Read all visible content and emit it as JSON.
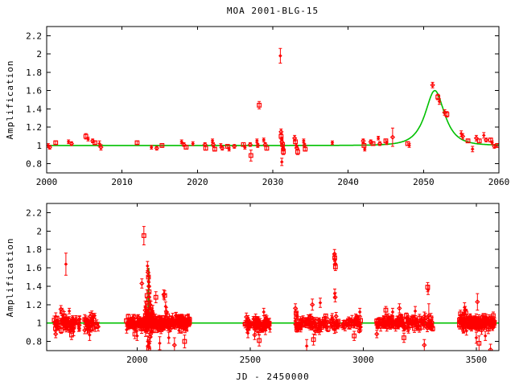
{
  "window": {
    "title": "MOA 2001-BLG-15"
  },
  "colors": {
    "data": "#ff0000",
    "model": "#00c000",
    "axis": "#000000",
    "background": "#ffffff"
  },
  "chart_data": [
    {
      "type": "scatter",
      "title": "MOA 2001-BLG-15",
      "xlabel": "",
      "ylabel": "Amplification",
      "xlim": [
        2000,
        2060
      ],
      "ylim": [
        0.7,
        2.3
      ],
      "xticks": [
        2000,
        2010,
        2020,
        2030,
        2040,
        2050,
        2060
      ],
      "xtick_labels": [
        "2000",
        "2010",
        "2020",
        "2030",
        "2040",
        "2050",
        "2060"
      ],
      "yticks": [
        0.8,
        1.0,
        1.2,
        1.4,
        1.6,
        1.8,
        2.0,
        2.2
      ],
      "ytick_labels": [
        "0.8",
        "1",
        "1.2",
        "1.4",
        "1.6",
        "1.8",
        "2",
        "2.2"
      ],
      "grid": false,
      "legend": "none",
      "model": {
        "type": "paczynski_microlensing",
        "t0": 2051.5,
        "u0": 0.75,
        "tE": 2.0,
        "baseline": 1.0,
        "peak_amplification": 1.6
      },
      "points": [
        [
          2000.2,
          1.0,
          0.02
        ],
        [
          2000.4,
          0.98,
          0.02
        ],
        [
          2001.2,
          1.03,
          0.02
        ],
        [
          2002.9,
          1.04,
          0.02
        ],
        [
          2003.3,
          1.02,
          0.02
        ],
        [
          2005.2,
          1.1,
          0.03
        ],
        [
          2005.5,
          1.07,
          0.02
        ],
        [
          2006.1,
          1.05,
          0.02
        ],
        [
          2006.4,
          1.03,
          0.02
        ],
        [
          2007.0,
          1.02,
          0.03
        ],
        [
          2007.2,
          0.98,
          0.03
        ],
        [
          2012.0,
          1.03,
          0.02
        ],
        [
          2013.9,
          0.98,
          0.02
        ],
        [
          2014.6,
          0.97,
          0.02
        ],
        [
          2015.3,
          1.0,
          0.02
        ],
        [
          2017.9,
          1.04,
          0.02
        ],
        [
          2018.2,
          1.01,
          0.02
        ],
        [
          2018.5,
          0.98,
          0.02
        ],
        [
          2019.4,
          1.02,
          0.02
        ],
        [
          2021.0,
          1.01,
          0.02
        ],
        [
          2021.1,
          0.97,
          0.02
        ],
        [
          2022.0,
          1.05,
          0.02
        ],
        [
          2022.1,
          1.01,
          0.02
        ],
        [
          2022.3,
          0.96,
          0.02
        ],
        [
          2023.1,
          1.0,
          0.02
        ],
        [
          2023.3,
          0.97,
          0.02
        ],
        [
          2024.0,
          0.99,
          0.02
        ],
        [
          2024.2,
          0.96,
          0.02
        ],
        [
          2024.9,
          0.99,
          0.02
        ],
        [
          2026.1,
          1.01,
          0.02
        ],
        [
          2026.3,
          0.98,
          0.02
        ],
        [
          2027.0,
          1.01,
          0.02
        ],
        [
          2027.1,
          0.89,
          0.06
        ],
        [
          2027.9,
          1.05,
          0.02
        ],
        [
          2028.0,
          1.0,
          0.02
        ],
        [
          2028.2,
          1.44,
          0.04
        ],
        [
          2028.8,
          1.06,
          0.02
        ],
        [
          2029.0,
          1.01,
          0.02
        ],
        [
          2029.2,
          0.97,
          0.02
        ],
        [
          2031.0,
          1.98,
          0.08
        ],
        [
          2031.1,
          1.15,
          0.03
        ],
        [
          2031.1,
          1.1,
          0.03
        ],
        [
          2031.2,
          1.07,
          0.02
        ],
        [
          2031.2,
          1.04,
          0.02
        ],
        [
          2031.3,
          1.01,
          0.02
        ],
        [
          2031.3,
          0.99,
          0.02
        ],
        [
          2031.4,
          0.96,
          0.02
        ],
        [
          2031.4,
          0.93,
          0.03
        ],
        [
          2031.2,
          0.82,
          0.04
        ],
        [
          2032.9,
          1.08,
          0.03
        ],
        [
          2033.0,
          1.04,
          0.02
        ],
        [
          2033.1,
          1.0,
          0.02
        ],
        [
          2033.2,
          0.97,
          0.02
        ],
        [
          2033.3,
          0.93,
          0.03
        ],
        [
          2034.1,
          1.05,
          0.02
        ],
        [
          2034.2,
          1.0,
          0.02
        ],
        [
          2034.3,
          0.96,
          0.02
        ],
        [
          2037.9,
          1.03,
          0.02
        ],
        [
          2042.0,
          1.05,
          0.02
        ],
        [
          2042.1,
          1.0,
          0.02
        ],
        [
          2042.2,
          0.96,
          0.02
        ],
        [
          2043.0,
          1.04,
          0.02
        ],
        [
          2043.3,
          1.02,
          0.02
        ],
        [
          2044.0,
          1.08,
          0.02
        ],
        [
          2044.2,
          1.02,
          0.02
        ],
        [
          2045.0,
          1.05,
          0.02
        ],
        [
          2045.1,
          1.03,
          0.02
        ],
        [
          2045.9,
          1.09,
          0.1
        ],
        [
          2047.9,
          1.02,
          0.02
        ],
        [
          2048.1,
          1.0,
          0.02
        ],
        [
          2051.2,
          1.66,
          0.03
        ],
        [
          2051.9,
          1.53,
          0.03
        ],
        [
          2052.1,
          1.48,
          0.03
        ],
        [
          2052.8,
          1.36,
          0.03
        ],
        [
          2053.1,
          1.34,
          0.03
        ],
        [
          2055.0,
          1.13,
          0.03
        ],
        [
          2055.2,
          1.1,
          0.03
        ],
        [
          2055.9,
          1.05,
          0.02
        ],
        [
          2056.5,
          0.96,
          0.03
        ],
        [
          2057.0,
          1.08,
          0.03
        ],
        [
          2057.4,
          1.05,
          0.02
        ],
        [
          2058.0,
          1.11,
          0.03
        ],
        [
          2058.3,
          1.06,
          0.02
        ],
        [
          2058.9,
          1.06,
          0.02
        ],
        [
          2059.1,
          1.03,
          0.02
        ],
        [
          2059.4,
          0.99,
          0.02
        ],
        [
          2059.8,
          1.0,
          0.02
        ]
      ],
      "clusters": []
    },
    {
      "type": "scatter",
      "title": "",
      "xlabel": "JD - 2450000",
      "ylabel": "Amplification",
      "xlim": [
        1600,
        3600
      ],
      "ylim": [
        0.7,
        2.3
      ],
      "xticks": [
        2000,
        2500,
        3000,
        3500
      ],
      "xtick_labels": [
        "2000",
        "2500",
        "3000",
        "3500"
      ],
      "yticks": [
        0.8,
        1.0,
        1.2,
        1.4,
        1.6,
        1.8,
        2.0,
        2.2
      ],
      "ytick_labels": [
        "0.8",
        "1",
        "1.2",
        "1.4",
        "1.6",
        "1.8",
        "2",
        "2.2"
      ],
      "grid": false,
      "legend": "none",
      "model": {
        "type": "paczynski_microlensing",
        "t0": 2051.5,
        "u0": 0.75,
        "tE": 2.0,
        "baseline": 1.0,
        "peak_amplification": 1.6
      },
      "points": [
        [
          1685,
          1.64,
          0.12
        ],
        [
          1663,
          1.15,
          0.04
        ],
        [
          1668,
          1.12,
          0.04
        ],
        [
          1700,
          1.13,
          0.03
        ],
        [
          1640,
          0.88,
          0.04
        ],
        [
          1710,
          0.87,
          0.05
        ],
        [
          1790,
          0.87,
          0.06
        ],
        [
          1800,
          1.09,
          0.04
        ],
        [
          1990,
          0.88,
          0.05
        ],
        [
          2000,
          0.86,
          0.05
        ],
        [
          2021,
          1.43,
          0.05
        ],
        [
          2030,
          1.95,
          0.1
        ],
        [
          2040,
          1.15,
          0.04
        ],
        [
          2042,
          1.22,
          0.05
        ],
        [
          2044,
          1.3,
          0.06
        ],
        [
          2046,
          1.62,
          0.05
        ],
        [
          2048,
          1.55,
          0.04
        ],
        [
          2050,
          1.5,
          0.04
        ],
        [
          2051,
          1.45,
          0.05
        ],
        [
          2052,
          1.4,
          0.04
        ],
        [
          2053,
          1.34,
          0.05
        ],
        [
          2055,
          1.28,
          0.05
        ],
        [
          2057,
          1.2,
          0.05
        ],
        [
          2060,
          1.12,
          0.05
        ],
        [
          2047,
          0.8,
          0.06
        ],
        [
          2049,
          0.75,
          0.07
        ],
        [
          2051,
          0.72,
          0.08
        ],
        [
          2055,
          0.78,
          0.06
        ],
        [
          2058,
          0.85,
          0.05
        ],
        [
          2083,
          1.28,
          0.06
        ],
        [
          2100,
          0.78,
          0.07
        ],
        [
          2118,
          1.31,
          0.05
        ],
        [
          2122,
          1.3,
          0.05
        ],
        [
          2126,
          1.18,
          0.05
        ],
        [
          2130,
          1.12,
          0.05
        ],
        [
          2134,
          1.08,
          0.04
        ],
        [
          2140,
          0.84,
          0.06
        ],
        [
          2165,
          0.76,
          0.08
        ],
        [
          2210,
          0.8,
          0.07
        ],
        [
          2490,
          0.89,
          0.05
        ],
        [
          2520,
          0.87,
          0.05
        ],
        [
          2540,
          0.81,
          0.06
        ],
        [
          2560,
          1.12,
          0.04
        ],
        [
          2700,
          1.16,
          0.05
        ],
        [
          2703,
          1.11,
          0.04
        ],
        [
          2750,
          0.75,
          0.07
        ],
        [
          2775,
          1.2,
          0.06
        ],
        [
          2780,
          0.82,
          0.06
        ],
        [
          2810,
          1.22,
          0.05
        ],
        [
          2873,
          1.75,
          0.05
        ],
        [
          2874,
          1.71,
          0.04
        ],
        [
          2875,
          1.68,
          0.04
        ],
        [
          2876,
          1.64,
          0.05
        ],
        [
          2877,
          1.61,
          0.04
        ],
        [
          2874,
          1.32,
          0.05
        ],
        [
          2876,
          1.28,
          0.05
        ],
        [
          2960,
          0.86,
          0.05
        ],
        [
          2985,
          1.12,
          0.04
        ],
        [
          3060,
          0.88,
          0.04
        ],
        [
          3100,
          1.14,
          0.04
        ],
        [
          3130,
          1.12,
          0.04
        ],
        [
          3160,
          1.16,
          0.05
        ],
        [
          3180,
          0.84,
          0.05
        ],
        [
          3230,
          1.13,
          0.05
        ],
        [
          3270,
          0.76,
          0.06
        ],
        [
          3285,
          1.39,
          0.05
        ],
        [
          3287,
          1.36,
          0.05
        ],
        [
          3290,
          1.08,
          0.13
        ],
        [
          3430,
          1.1,
          0.04
        ],
        [
          3448,
          1.17,
          0.05
        ],
        [
          3451,
          1.14,
          0.04
        ],
        [
          3454,
          1.11,
          0.04
        ],
        [
          3500,
          0.84,
          0.06
        ],
        [
          3505,
          1.23,
          0.09
        ],
        [
          3512,
          0.78,
          0.08
        ],
        [
          3540,
          0.86,
          0.05
        ],
        [
          3563,
          0.71,
          0.06
        ],
        [
          3575,
          1.08,
          0.04
        ]
      ],
      "clusters": [
        {
          "seed": 11,
          "n": 70,
          "t_range": [
            1633,
            1748
          ],
          "mean": 0.995,
          "sd": 0.035,
          "err_range": [
            0.02,
            0.05
          ]
        },
        {
          "seed": 22,
          "n": 30,
          "t_range": [
            1768,
            1828
          ],
          "mean": 0.99,
          "sd": 0.04,
          "err_range": [
            0.02,
            0.06
          ]
        },
        {
          "seed": 33,
          "n": 255,
          "t_range": [
            1952,
            2232
          ],
          "mean": 1.0,
          "sd": 0.032,
          "err_range": [
            0.015,
            0.05
          ]
        },
        {
          "seed": 34,
          "n": 45,
          "t_range": [
            2035,
            2070
          ],
          "mean": 1.02,
          "sd": 0.06,
          "err_range": [
            0.02,
            0.07
          ]
        },
        {
          "seed": 44,
          "n": 80,
          "t_range": [
            2473,
            2588
          ],
          "mean": 0.995,
          "sd": 0.032,
          "err_range": [
            0.015,
            0.05
          ]
        },
        {
          "seed": 55,
          "n": 130,
          "t_range": [
            2693,
            2990
          ],
          "mean": 1.0,
          "sd": 0.035,
          "err_range": [
            0.015,
            0.05
          ]
        },
        {
          "seed": 66,
          "n": 150,
          "t_range": [
            3055,
            3308
          ],
          "mean": 1.0,
          "sd": 0.033,
          "err_range": [
            0.015,
            0.05
          ]
        },
        {
          "seed": 77,
          "n": 130,
          "t_range": [
            3423,
            3585
          ],
          "mean": 1.0,
          "sd": 0.035,
          "err_range": [
            0.015,
            0.05
          ]
        }
      ]
    }
  ]
}
